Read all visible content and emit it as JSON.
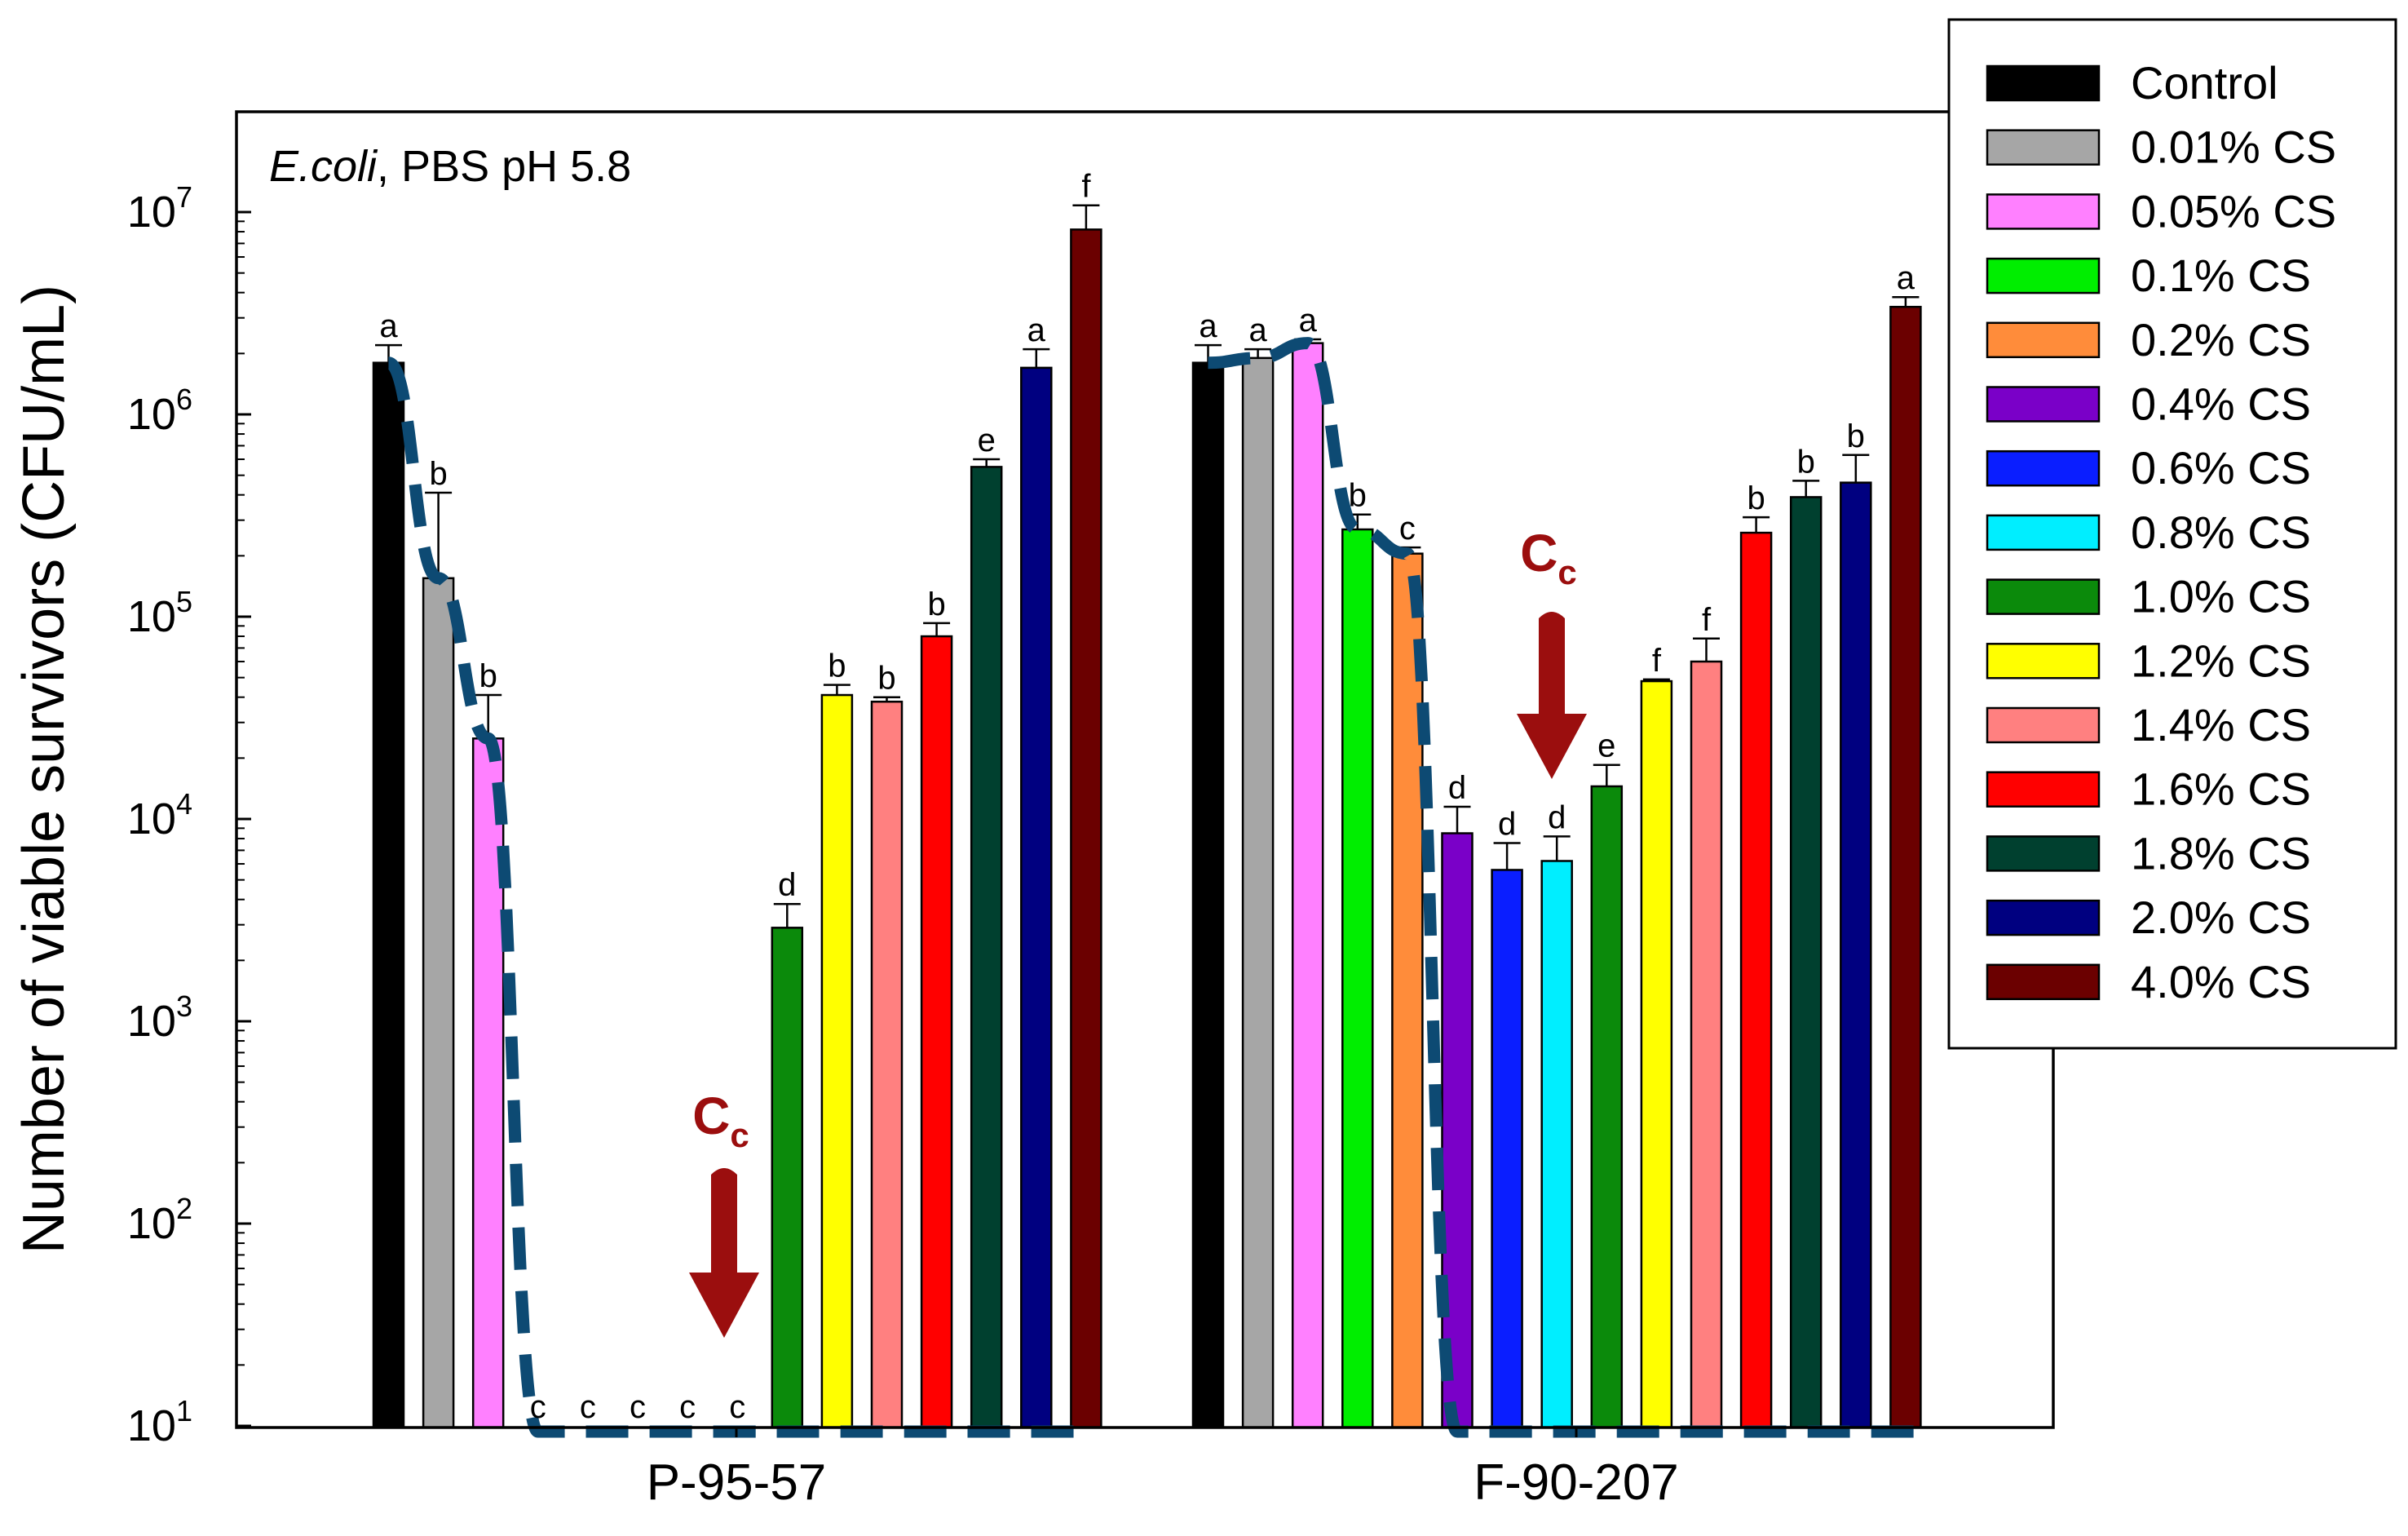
{
  "chart_data": {
    "type": "bar",
    "title": "",
    "annotation": {
      "organism": "E.coli",
      "condition": ", PBS pH 5.8"
    },
    "ylabel": "Number of viable survivors (CFU/mL)",
    "xlabel": "",
    "yscale": "log",
    "ylim": [
      10,
      30000000
    ],
    "yticks": [
      {
        "value": 10,
        "base": "10",
        "exp": "1"
      },
      {
        "value": 100,
        "base": "10",
        "exp": "2"
      },
      {
        "value": 1000,
        "base": "10",
        "exp": "3"
      },
      {
        "value": 10000,
        "base": "10",
        "exp": "4"
      },
      {
        "value": 100000,
        "base": "10",
        "exp": "5"
      },
      {
        "value": 1000000,
        "base": "10",
        "exp": "6"
      },
      {
        "value": 10000000,
        "base": "10",
        "exp": "7"
      }
    ],
    "categories": [
      "P-95-57",
      "F-90-207"
    ],
    "legend_position": "top-right, outside",
    "series": [
      {
        "name": "Control",
        "color": "#000000",
        "values": [
          1800000,
          1800000
        ],
        "errors": [
          2200000,
          2200000
        ],
        "sig": [
          "a",
          "a"
        ]
      },
      {
        "name": "0.01% CS",
        "color": "#a6a6a6",
        "values": [
          155000,
          1900000
        ],
        "errors": [
          410000,
          2100000
        ],
        "sig": [
          "b",
          "a"
        ]
      },
      {
        "name": "0.05% CS",
        "color": "#ff80ff",
        "values": [
          25000,
          2250000
        ],
        "errors": [
          41000,
          2350000
        ],
        "sig": [
          "b",
          "a"
        ]
      },
      {
        "name": "0.1% CS",
        "color": "#00ee00",
        "values": [
          10,
          270000
        ],
        "errors": [
          null,
          320000
        ],
        "sig": [
          "c",
          "b"
        ]
      },
      {
        "name": "0.2% CS",
        "color": "#ff8c3a",
        "values": [
          10,
          205000
        ],
        "errors": [
          null,
          220000
        ],
        "sig": [
          "c",
          "c"
        ]
      },
      {
        "name": "0.4% CS",
        "color": "#7a00c8",
        "values": [
          10,
          8500
        ],
        "errors": [
          null,
          11500
        ],
        "sig": [
          "c",
          "d"
        ]
      },
      {
        "name": "0.6% CS",
        "color": "#0a1eff",
        "values": [
          10,
          5600
        ],
        "errors": [
          null,
          7600
        ],
        "sig": [
          "c",
          "d"
        ]
      },
      {
        "name": "0.8% CS",
        "color": "#00eeff",
        "values": [
          10,
          6200
        ],
        "errors": [
          null,
          8200
        ],
        "sig": [
          "c",
          "d"
        ]
      },
      {
        "name": "1.0% CS",
        "color": "#0b8a0b",
        "values": [
          2900,
          14500
        ],
        "errors": [
          3800,
          18500
        ],
        "sig": [
          "d",
          "e"
        ]
      },
      {
        "name": "1.2% CS",
        "color": "#ffff00",
        "values": [
          41000,
          48000
        ],
        "errors": [
          46000,
          49000
        ],
        "sig": [
          "b",
          "f"
        ]
      },
      {
        "name": "1.4% CS",
        "color": "#ff8080",
        "values": [
          38000,
          60000
        ],
        "errors": [
          40000,
          78000
        ],
        "sig": [
          "b",
          "f"
        ]
      },
      {
        "name": "1.6% CS",
        "color": "#ff0000",
        "values": [
          80000,
          260000
        ],
        "errors": [
          93000,
          310000
        ],
        "sig": [
          "b",
          "b"
        ]
      },
      {
        "name": "1.8% CS",
        "color": "#00402f",
        "values": [
          550000,
          390000
        ],
        "errors": [
          600000,
          470000
        ],
        "sig": [
          "e",
          "b"
        ]
      },
      {
        "name": "2.0% CS",
        "color": "#000080",
        "values": [
          1700000,
          460000
        ],
        "errors": [
          2100000,
          630000
        ],
        "sig": [
          "a",
          "b"
        ]
      },
      {
        "name": "4.0% CS",
        "color": "#6b0000",
        "values": [
          8200000,
          3400000
        ],
        "errors": [
          10800000,
          3800000
        ],
        "sig": [
          "f",
          "a"
        ]
      }
    ],
    "cc_markers": [
      {
        "label_main": "C",
        "label_sub": "c",
        "category": "P-95-57",
        "near_series": "0.8% CS"
      },
      {
        "label_main": "C",
        "label_sub": "c",
        "category": "F-90-207",
        "near_series": "0.8% CS"
      }
    ],
    "trend_lines": [
      {
        "category": "P-95-57",
        "values": [
          1800000,
          155000,
          25000,
          10,
          10,
          10,
          10,
          10,
          10,
          10,
          10,
          10,
          10,
          10,
          10
        ]
      },
      {
        "category": "F-90-207",
        "values": [
          1800000,
          1900000,
          2250000,
          270000,
          205000,
          10,
          10,
          10,
          10,
          10,
          10,
          10,
          10,
          10,
          10
        ]
      }
    ],
    "colors": {
      "cc_arrow": "#9b0e0e",
      "trend_line": "#0d4a73",
      "axis": "#000000"
    }
  }
}
